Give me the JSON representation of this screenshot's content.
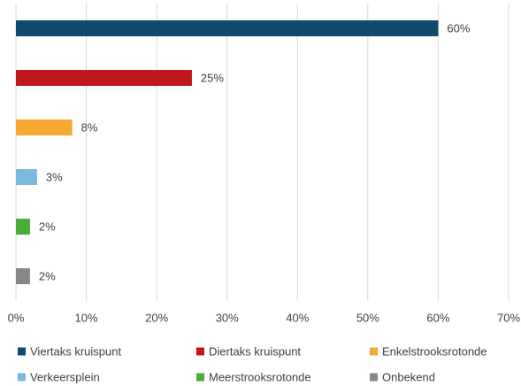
{
  "chart_data": {
    "type": "bar",
    "orientation": "horizontal",
    "categories": [
      "Viertaks kruispunt",
      "Diertaks kruispunt",
      "Enkelstrooksrotonde",
      "Verkeersplein",
      "Meerstrooksrotonde",
      "Onbekend"
    ],
    "values": [
      60,
      25,
      8,
      3,
      2,
      2
    ],
    "value_labels": [
      "60%",
      "25%",
      "8%",
      "3%",
      "2%",
      "2%"
    ],
    "colors": [
      "#0e4a6b",
      "#c0171c",
      "#f5a833",
      "#7ab8dc",
      "#4aad3a",
      "#878787"
    ],
    "xlim": [
      0,
      70
    ],
    "xticks": [
      {
        "value": 0,
        "label": "0%"
      },
      {
        "value": 10,
        "label": "10%"
      },
      {
        "value": 20,
        "label": "20%"
      },
      {
        "value": 30,
        "label": "30%"
      },
      {
        "value": 40,
        "label": "40%"
      },
      {
        "value": 50,
        "label": "50%"
      },
      {
        "value": 60,
        "label": "60%"
      },
      {
        "value": 70,
        "label": "70%"
      }
    ],
    "grid": true,
    "legend": "bottom"
  }
}
